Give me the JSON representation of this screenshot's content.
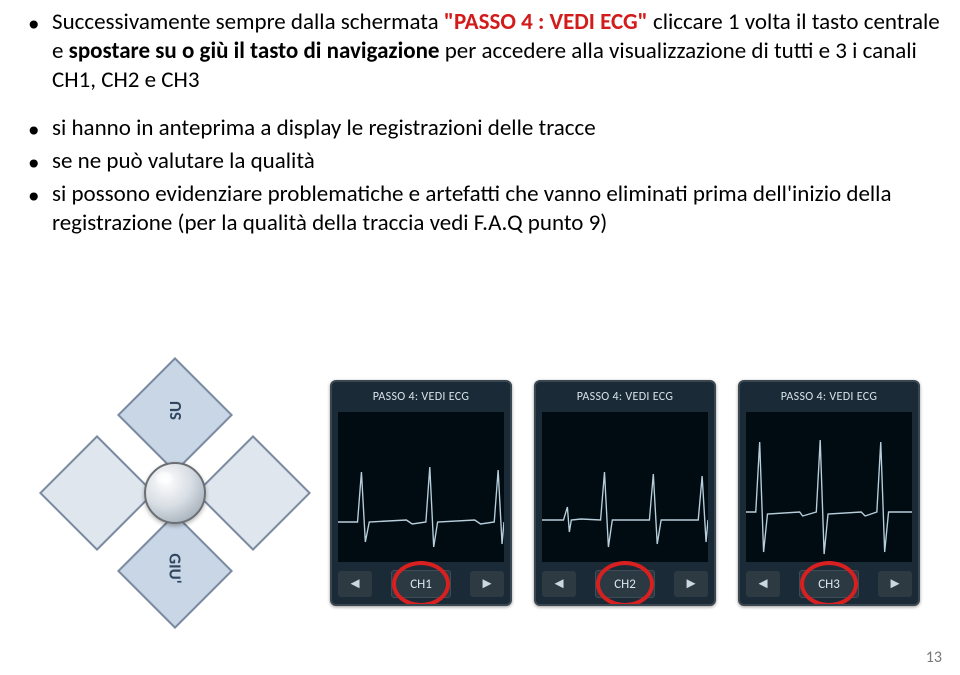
{
  "bullets": {
    "intro_pre": "Successivamente sempre dalla schermata ",
    "intro_passo": "\"PASSO 4 : VEDI ECG\"",
    "intro_mid": " cliccare 1 volta il tasto centrale e ",
    "intro_spostare": "spostare su o giù il tasto di navigazione",
    "intro_post": " per accedere alla visualizzazione di tutti e 3 i canali CH1, CH2 e CH3",
    "b1": "si hanno in anteprima a display le registrazioni delle tracce",
    "b2": "se ne può valutare la qualità",
    "b3": "si possono evidenziare problematiche e artefatti che vanno eliminati prima dell'inizio della registrazione (per la qualità della traccia vedi F.A.Q punto 9)"
  },
  "nav": {
    "up_label": "SU",
    "down_label": "GIU'"
  },
  "screens": [
    {
      "title": "PASSO 4: VEDI ECG",
      "channel": "CH1"
    },
    {
      "title": "PASSO 4: VEDI ECG",
      "channel": "CH2"
    },
    {
      "title": "PASSO 4: VEDI ECG",
      "channel": "CH3"
    }
  ],
  "arrows": {
    "left": "◄",
    "right": "►"
  },
  "ecg_colors": {
    "screen_bg": "#1a2a36",
    "ecg_bg": "#000b12",
    "trace": "#b7cedb",
    "ring": "#d92020"
  },
  "ecg_paths": [
    "M0,110 L20,110 L24,60 L28,130 L32,110 L70,108 L76,112 L90,110 L94,55 L98,135 L102,110 L140,108 L146,112 L160,110 L164,58 L168,132 L170,110",
    "M0,108 L22,108 L26,95 L28,120 L30,108 L40,107 L60,108 L64,60 L68,135 L72,108 L110,108 L114,62 L118,132 L122,108 L160,108 L164,64 L168,130 L170,108",
    "M0,100 L10,100 L14,30 L18,140 L22,102 L55,100 L58,104 L72,100 L76,28 L80,142 L84,102 L118,100 L122,104 L134,100 L138,30 L142,140 L146,100 L170,100"
  ],
  "page_number": "13"
}
